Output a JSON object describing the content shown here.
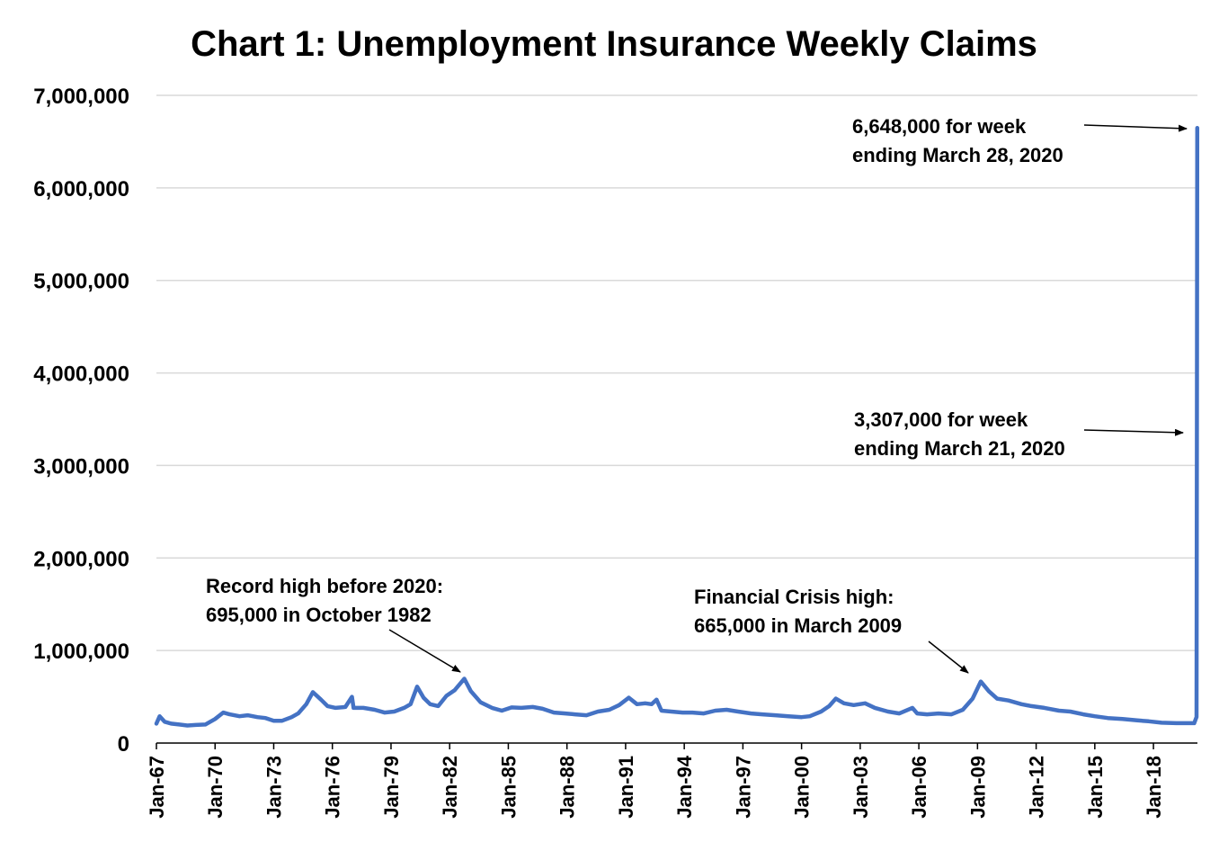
{
  "chart_data": {
    "type": "line",
    "title": "Chart 1: Unemployment Insurance Weekly Claims",
    "xlabel": "",
    "ylabel": "",
    "ylim": [
      0,
      7000000
    ],
    "y_ticks": [
      0,
      1000000,
      2000000,
      3000000,
      4000000,
      5000000,
      6000000,
      7000000
    ],
    "y_tick_labels": [
      "0",
      "1,000,000",
      "2,000,000",
      "3,000,000",
      "4,000,000",
      "5,000,000",
      "6,000,000",
      "7,000,000"
    ],
    "x_ticks": [
      "1967-01",
      "1970-01",
      "1973-01",
      "1976-01",
      "1979-01",
      "1982-01",
      "1985-01",
      "1988-01",
      "1991-01",
      "1994-01",
      "1997-01",
      "2000-01",
      "2003-01",
      "2006-01",
      "2009-01",
      "2012-01",
      "2015-01",
      "2018-01"
    ],
    "x_tick_labels": [
      "Jan-67",
      "Jan-70",
      "Jan-73",
      "Jan-76",
      "Jan-79",
      "Jan-82",
      "Jan-85",
      "Jan-88",
      "Jan-91",
      "Jan-94",
      "Jan-97",
      "Jan-00",
      "Jan-03",
      "Jan-06",
      "Jan-09",
      "Jan-12",
      "Jan-15",
      "Jan-18"
    ],
    "xlim": [
      "1967-01",
      "2020-04"
    ],
    "grid": true,
    "series": [
      {
        "color": "#4472c4",
        "points": [
          [
            "1967-01",
            210000
          ],
          [
            "1967-03",
            290000
          ],
          [
            "1967-06",
            230000
          ],
          [
            "1967-10",
            210000
          ],
          [
            "1968-03",
            200000
          ],
          [
            "1968-08",
            190000
          ],
          [
            "1969-01",
            195000
          ],
          [
            "1969-07",
            200000
          ],
          [
            "1970-01",
            260000
          ],
          [
            "1970-06",
            330000
          ],
          [
            "1970-10",
            310000
          ],
          [
            "1971-04",
            290000
          ],
          [
            "1971-09",
            300000
          ],
          [
            "1972-03",
            280000
          ],
          [
            "1972-08",
            270000
          ],
          [
            "1973-01",
            240000
          ],
          [
            "1973-06",
            240000
          ],
          [
            "1973-12",
            280000
          ],
          [
            "1974-04",
            320000
          ],
          [
            "1974-09",
            420000
          ],
          [
            "1975-01",
            550000
          ],
          [
            "1975-06",
            470000
          ],
          [
            "1975-10",
            400000
          ],
          [
            "1976-03",
            380000
          ],
          [
            "1976-09",
            390000
          ],
          [
            "1977-01",
            500000
          ],
          [
            "1977-02",
            380000
          ],
          [
            "1977-08",
            380000
          ],
          [
            "1978-03",
            360000
          ],
          [
            "1978-09",
            330000
          ],
          [
            "1979-03",
            340000
          ],
          [
            "1979-09",
            380000
          ],
          [
            "1980-01",
            420000
          ],
          [
            "1980-05",
            610000
          ],
          [
            "1980-09",
            490000
          ],
          [
            "1981-01",
            420000
          ],
          [
            "1981-06",
            400000
          ],
          [
            "1981-11",
            510000
          ],
          [
            "1982-04",
            570000
          ],
          [
            "1982-10",
            695000
          ],
          [
            "1983-02",
            560000
          ],
          [
            "1983-08",
            440000
          ],
          [
            "1984-03",
            380000
          ],
          [
            "1984-09",
            350000
          ],
          [
            "1985-03",
            385000
          ],
          [
            "1985-09",
            380000
          ],
          [
            "1986-04",
            390000
          ],
          [
            "1986-10",
            370000
          ],
          [
            "1987-05",
            330000
          ],
          [
            "1987-12",
            320000
          ],
          [
            "1988-06",
            310000
          ],
          [
            "1989-01",
            300000
          ],
          [
            "1989-08",
            340000
          ],
          [
            "1990-03",
            360000
          ],
          [
            "1990-09",
            410000
          ],
          [
            "1991-03",
            490000
          ],
          [
            "1991-08",
            420000
          ],
          [
            "1992-01",
            430000
          ],
          [
            "1992-05",
            420000
          ],
          [
            "1992-08",
            470000
          ],
          [
            "1992-11",
            350000
          ],
          [
            "1993-05",
            340000
          ],
          [
            "1993-12",
            330000
          ],
          [
            "1994-06",
            330000
          ],
          [
            "1995-01",
            320000
          ],
          [
            "1995-08",
            350000
          ],
          [
            "1996-03",
            360000
          ],
          [
            "1996-10",
            340000
          ],
          [
            "1997-06",
            320000
          ],
          [
            "1998-01",
            310000
          ],
          [
            "1998-09",
            300000
          ],
          [
            "1999-05",
            290000
          ],
          [
            "2000-01",
            280000
          ],
          [
            "2000-06",
            290000
          ],
          [
            "2001-01",
            340000
          ],
          [
            "2001-06",
            400000
          ],
          [
            "2001-10",
            480000
          ],
          [
            "2002-03",
            430000
          ],
          [
            "2002-09",
            410000
          ],
          [
            "2003-04",
            430000
          ],
          [
            "2003-10",
            380000
          ],
          [
            "2004-06",
            340000
          ],
          [
            "2005-01",
            320000
          ],
          [
            "2005-09",
            380000
          ],
          [
            "2005-12",
            320000
          ],
          [
            "2006-06",
            310000
          ],
          [
            "2007-01",
            320000
          ],
          [
            "2007-09",
            310000
          ],
          [
            "2008-04",
            360000
          ],
          [
            "2008-10",
            480000
          ],
          [
            "2009-03",
            665000
          ],
          [
            "2009-08",
            560000
          ],
          [
            "2010-01",
            480000
          ],
          [
            "2010-08",
            460000
          ],
          [
            "2011-04",
            420000
          ],
          [
            "2011-10",
            400000
          ],
          [
            "2012-06",
            380000
          ],
          [
            "2013-03",
            350000
          ],
          [
            "2013-10",
            340000
          ],
          [
            "2014-06",
            310000
          ],
          [
            "2015-01",
            290000
          ],
          [
            "2015-09",
            270000
          ],
          [
            "2016-06",
            260000
          ],
          [
            "2017-03",
            245000
          ],
          [
            "2017-10",
            235000
          ],
          [
            "2018-06",
            220000
          ],
          [
            "2019-03",
            215000
          ],
          [
            "2019-10",
            215000
          ],
          [
            "2020-02",
            215000
          ],
          [
            "2020-03-14",
            282000
          ],
          [
            "2020-03-21",
            3307000
          ],
          [
            "2020-03-28",
            6648000
          ]
        ]
      }
    ],
    "annotations": [
      {
        "lines": [
          "6,648,000 for week",
          "ending March 28, 2020"
        ]
      },
      {
        "lines": [
          "3,307,000 for week",
          "ending March 21, 2020"
        ]
      },
      {
        "lines": [
          "Record high before 2020:",
          "695,000 in October 1982"
        ]
      },
      {
        "lines": [
          "Financial Crisis high:",
          "665,000 in March 2009"
        ]
      }
    ]
  }
}
